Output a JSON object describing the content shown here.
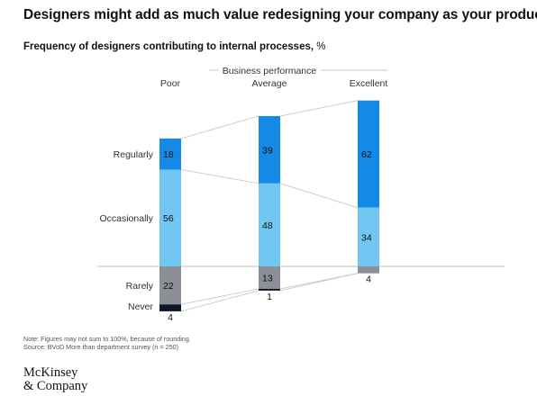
{
  "title": "Designers might add as much value redesigning your company as your product.",
  "subtitle": "Frequency of designers contributing to internal processes,",
  "unit": "%",
  "note": "Note: Figures may not sum to 100%, because of rounding.",
  "source": "Source: BVoD More than department survey (n = 250)",
  "brand": {
    "line1": "McKinsey",
    "line2": "& Company"
  },
  "chart_data": {
    "type": "bar",
    "stacked": true,
    "title": "Frequency of designers contributing to internal processes, %",
    "xlabel": "Business performance",
    "categories": [
      "Poor",
      "Average",
      "Excellent"
    ],
    "series": [
      {
        "name": "Regularly",
        "values": [
          18,
          39,
          62
        ],
        "color": "#1589e6"
      },
      {
        "name": "Occasionally",
        "values": [
          56,
          48,
          34
        ],
        "color": "#72c6f2"
      },
      {
        "name": "Rarely",
        "values": [
          22,
          13,
          4
        ],
        "color": "#8d8f96"
      },
      {
        "name": "Never",
        "values": [
          4,
          1,
          0
        ],
        "color": "#0f1724"
      }
    ],
    "labels_outside": [
      {
        "series": "Never",
        "category": "Poor",
        "text": "4"
      },
      {
        "series": "Never",
        "category": "Average",
        "text": "1"
      },
      {
        "series": "Rarely",
        "category": "Excellent",
        "text": "4"
      }
    ],
    "grid": false,
    "legend": "left"
  }
}
